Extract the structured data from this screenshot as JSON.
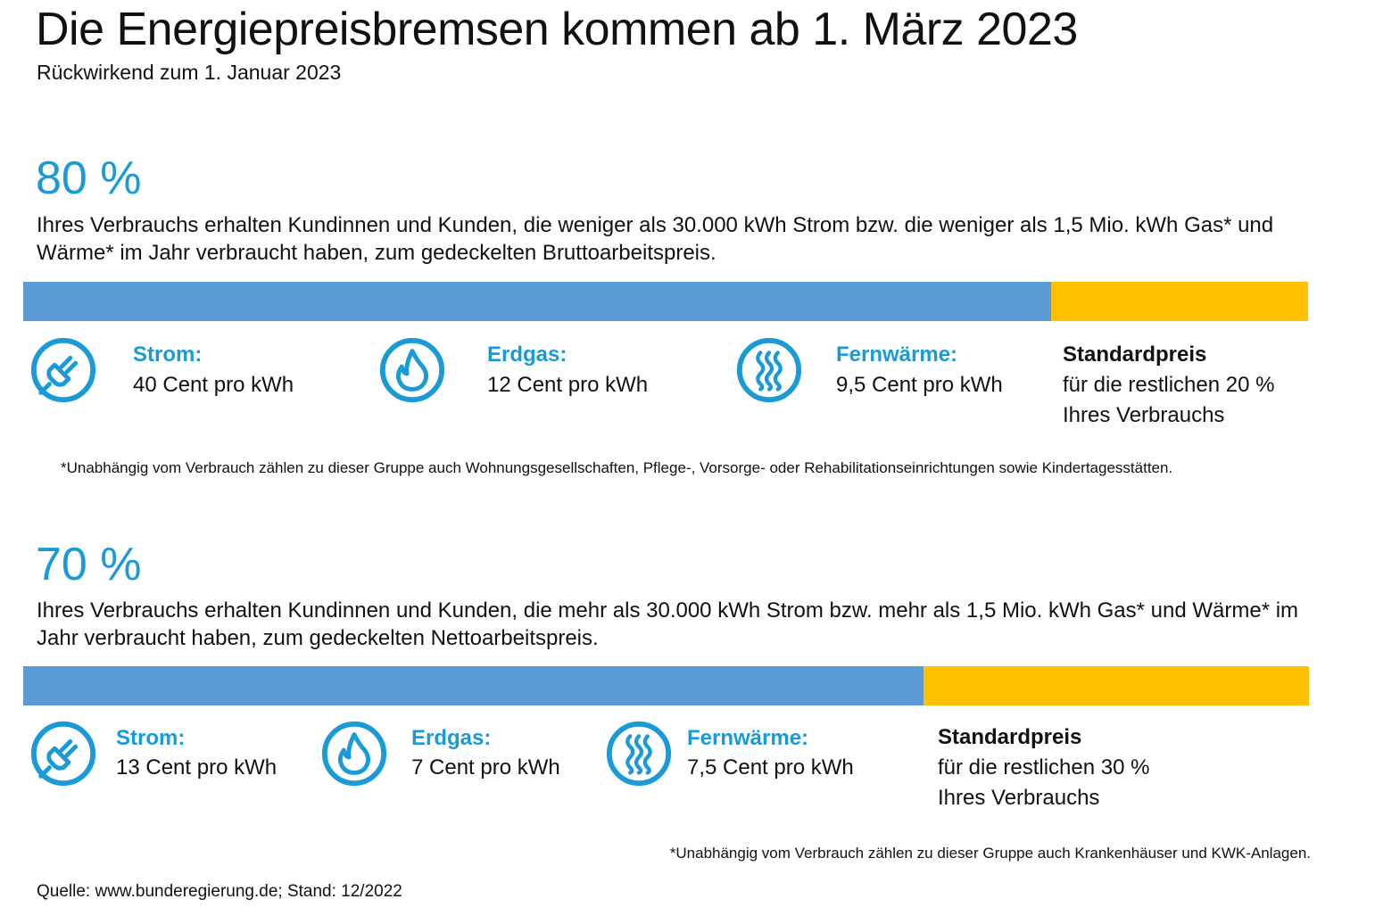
{
  "colors": {
    "accent": "#1a9ad6",
    "bar_blue": "#5b9bd5",
    "bar_yellow": "#ffc000"
  },
  "header": {
    "title": "Die Energiepreisbremsen kommen ab 1. März 2023",
    "subtitle": "Rückwirkend zum 1. Januar 2023"
  },
  "sections": [
    {
      "percent_label": "80 %",
      "share": 0.8,
      "description": "Ihres Verbrauchs erhalten Kundinnen und Kunden, die weniger als 30.000 kWh Strom bzw. die weniger als 1,5 Mio. kWh Gas* und Wärme* im Jahr verbraucht haben, zum gedeckelten Bruttoarbeitspreis.",
      "items": [
        {
          "icon": "plug-icon",
          "label": "Strom:",
          "value": "40 Cent pro kWh"
        },
        {
          "icon": "flame-icon",
          "label": "Erdgas:",
          "value": "12 Cent pro kWh"
        },
        {
          "icon": "heat-waves-icon",
          "label": "Fernwärme:",
          "value": "9,5 Cent pro kWh"
        }
      ],
      "standard": {
        "title": "Standardpreis",
        "line1": "für die restlichen 20 %",
        "line2": "Ihres Verbrauchs"
      },
      "footnote": "*Unabhängig vom Verbrauch zählen zu dieser Gruppe auch Wohnungsgesellschaften, Pflege-, Vorsorge- oder Rehabilitationseinrichtungen sowie Kindertagesstätten."
    },
    {
      "percent_label": "70 %",
      "share": 0.7,
      "description": "Ihres Verbrauchs erhalten Kundinnen und Kunden, die mehr als 30.000 kWh Strom bzw. mehr als 1,5 Mio. kWh Gas* und Wärme* im Jahr verbraucht haben, zum gedeckelten Nettoarbeitspreis.",
      "items": [
        {
          "icon": "plug-icon",
          "label": "Strom:",
          "value": "13 Cent pro kWh"
        },
        {
          "icon": "flame-icon",
          "label": "Erdgas:",
          "value": "7 Cent pro kWh"
        },
        {
          "icon": "heat-waves-icon",
          "label": "Fernwärme:",
          "value": "7,5 Cent pro kWh"
        }
      ],
      "standard": {
        "title": "Standardpreis",
        "line1": "für die restlichen 30 %",
        "line2": "Ihres Verbrauchs"
      },
      "footnote": "*Unabhängig vom Verbrauch zählen zu dieser Gruppe auch Krankenhäuser und KWK-Anlagen."
    }
  ],
  "source": "Quelle: www.bunderegierung.de; Stand: 12/2022"
}
